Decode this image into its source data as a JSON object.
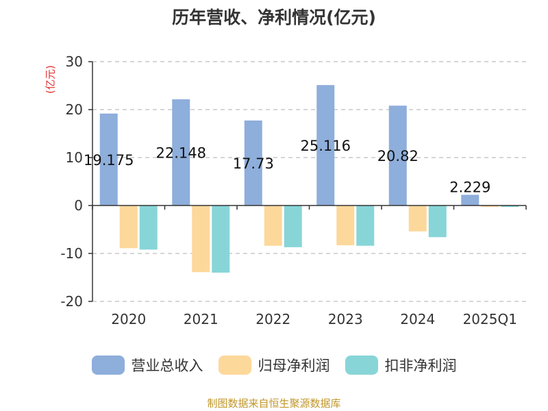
{
  "chart_data": {
    "type": "bar",
    "title": "历年营收、净利情况(亿元)",
    "ylabel": "(亿元)",
    "categories": [
      "2020",
      "2021",
      "2022",
      "2023",
      "2024",
      "2025Q1"
    ],
    "ylim": [
      -20,
      30
    ],
    "yticks": [
      30,
      20,
      10,
      0,
      -10,
      -20
    ],
    "grid": true,
    "legend_position": "bottom",
    "series": [
      {
        "name": "营业总收入",
        "color": "#8eaedb",
        "values": [
          19.175,
          22.148,
          17.73,
          25.116,
          20.82,
          2.229
        ]
      },
      {
        "name": "归母净利润",
        "color": "#fdd89b",
        "values": [
          -8.9,
          -13.9,
          -8.4,
          -8.3,
          -5.4,
          -0.3
        ]
      },
      {
        "name": "扣非净利润",
        "color": "#88d5d8",
        "values": [
          -9.2,
          -14.0,
          -8.7,
          -8.4,
          -6.6,
          -0.3
        ]
      }
    ],
    "data_labels": [
      "19.175",
      "22.148",
      "17.73",
      "25.116",
      "20.82",
      "2.229"
    ]
  },
  "source": "制图数据来自恒生聚源数据库"
}
